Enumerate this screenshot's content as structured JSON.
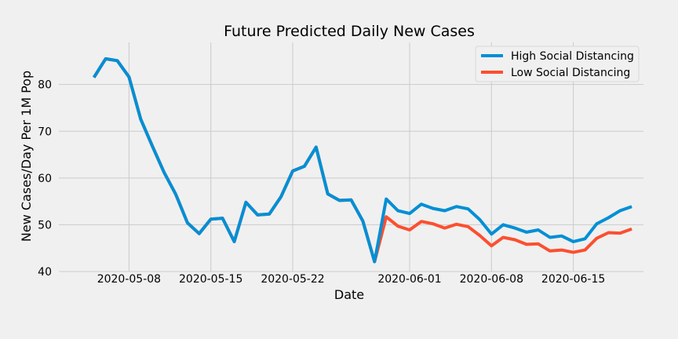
{
  "chart_data": {
    "type": "line",
    "title": "Future Predicted Daily New Cases",
    "xlabel": "Date",
    "ylabel": "New Cases/Day Per 1M Pop",
    "x_start": "2020-05-05",
    "x_ticks": [
      "2020-05-08",
      "2020-05-15",
      "2020-05-22",
      "2020-06-01",
      "2020-06-08",
      "2020-06-15"
    ],
    "y_ticks": [
      40,
      50,
      60,
      70,
      80
    ],
    "xlim": [
      "2020-05-02",
      "2020-06-21"
    ],
    "ylim": [
      40,
      88
    ],
    "grid": true,
    "legend_position": "top-right",
    "series": [
      {
        "name": "High Social Distancing",
        "color": "#008fd5",
        "values": [
          81.5,
          85.5,
          85.1,
          81.6,
          72.6,
          66.8,
          61.2,
          56.5,
          50.4,
          48.1,
          51.2,
          51.4,
          46.4,
          54.8,
          52.1,
          52.3,
          56.0,
          61.5,
          62.5,
          66.6,
          56.6,
          55.2,
          55.3,
          50.8,
          42.1,
          55.5,
          53.0,
          52.4,
          54.4,
          53.5,
          53.0,
          53.9,
          53.4,
          51.1,
          48.0,
          50.0,
          49.3,
          48.4,
          48.9,
          47.3,
          47.6,
          46.4,
          47.0,
          50.2,
          51.5,
          53.0,
          53.9
        ]
      },
      {
        "name": "Low Social Distancing",
        "color": "#fc4f30",
        "values": [
          81.5,
          85.5,
          85.1,
          81.6,
          72.6,
          66.8,
          61.2,
          56.5,
          50.4,
          48.1,
          51.2,
          51.4,
          46.4,
          54.8,
          52.1,
          52.3,
          56.0,
          61.5,
          62.5,
          66.6,
          56.6,
          55.2,
          55.3,
          50.8,
          42.1,
          51.7,
          49.7,
          48.9,
          50.7,
          50.2,
          49.3,
          50.1,
          49.6,
          47.7,
          45.5,
          47.3,
          46.8,
          45.8,
          45.9,
          44.4,
          44.6,
          44.1,
          44.6,
          47.1,
          48.3,
          48.2,
          49.1
        ]
      }
    ]
  }
}
